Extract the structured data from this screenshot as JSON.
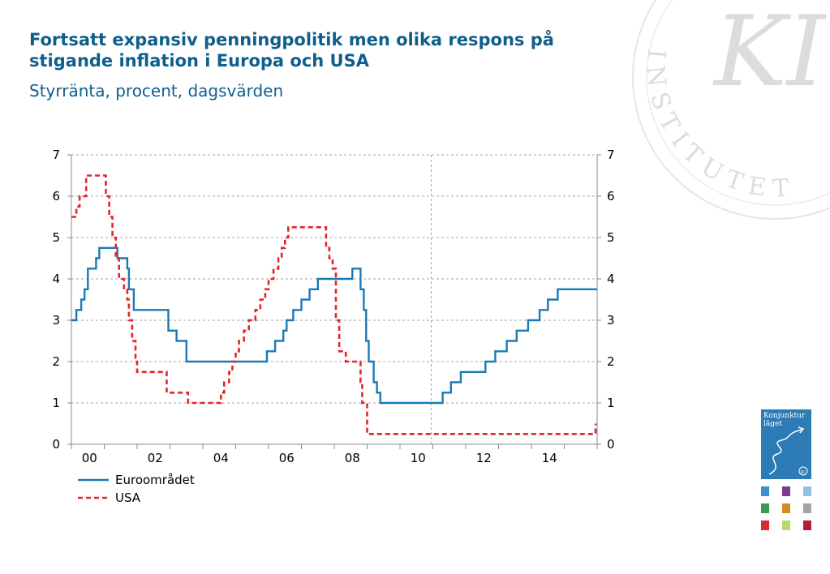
{
  "title": "Fortsatt expansiv penningpolitik men olika respons på stigande inflation i Europa och USA",
  "subtitle": "Styrränta, procent, dagsvärden",
  "watermark": {
    "letters": "KI",
    "ring_text": "INSTITUTET"
  },
  "report_badge": {
    "line1": "Konjunktur",
    "line2": "läget",
    "mark": "KI",
    "colors": [
      "#3a8fd0",
      "#7d3a8f",
      "#8fc3e6",
      "#3a9a52",
      "#d08c1e",
      "#9ea4a8",
      "#d8283a",
      "#b8d86a",
      "#b51e3a"
    ]
  },
  "chart_data": {
    "type": "line",
    "title": "",
    "xlabel": "",
    "ylabel": "",
    "ylim": [
      0,
      7
    ],
    "xlim": [
      1999.95,
      2015.95
    ],
    "yticks": [
      0,
      1,
      2,
      3,
      4,
      5,
      6,
      7
    ],
    "yticks_right": [
      0,
      1,
      2,
      3,
      4,
      5,
      6,
      7
    ],
    "xtick_labels": [
      "00",
      "02",
      "04",
      "06",
      "08",
      "10",
      "12",
      "14"
    ],
    "grid": "horizontal dashed",
    "vertical_marker": 2010.9,
    "legend_position": "bottom-left",
    "series": [
      {
        "name": "Euroområdet",
        "color": "#1a7ab5",
        "style": "solid",
        "points": [
          [
            1999.95,
            3.0
          ],
          [
            2000.1,
            3.25
          ],
          [
            2000.25,
            3.5
          ],
          [
            2000.35,
            3.75
          ],
          [
            2000.45,
            4.25
          ],
          [
            2000.7,
            4.5
          ],
          [
            2000.8,
            4.75
          ],
          [
            2001.35,
            4.5
          ],
          [
            2001.65,
            4.25
          ],
          [
            2001.7,
            3.75
          ],
          [
            2001.85,
            3.25
          ],
          [
            2002.9,
            2.75
          ],
          [
            2003.15,
            2.5
          ],
          [
            2003.45,
            2.0
          ],
          [
            2005.9,
            2.25
          ],
          [
            2006.15,
            2.5
          ],
          [
            2006.4,
            2.75
          ],
          [
            2006.5,
            3.0
          ],
          [
            2006.7,
            3.25
          ],
          [
            2006.95,
            3.5
          ],
          [
            2007.2,
            3.75
          ],
          [
            2007.45,
            4.0
          ],
          [
            2008.5,
            4.25
          ],
          [
            2008.75,
            3.75
          ],
          [
            2008.85,
            3.25
          ],
          [
            2008.92,
            2.5
          ],
          [
            2009.0,
            2.0
          ],
          [
            2009.15,
            1.5
          ],
          [
            2009.25,
            1.25
          ],
          [
            2009.35,
            1.0
          ],
          [
            2011.25,
            1.25
          ],
          [
            2011.5,
            1.5
          ],
          [
            2011.8,
            1.75
          ],
          [
            2012.55,
            2.0
          ],
          [
            2012.85,
            2.25
          ],
          [
            2013.2,
            2.5
          ],
          [
            2013.5,
            2.75
          ],
          [
            2013.85,
            3.0
          ],
          [
            2014.2,
            3.25
          ],
          [
            2014.45,
            3.5
          ],
          [
            2014.75,
            3.75
          ],
          [
            2015.95,
            3.75
          ]
        ]
      },
      {
        "name": "USA",
        "color": "#e32628",
        "style": "dashed",
        "points": [
          [
            1999.95,
            5.5
          ],
          [
            2000.1,
            5.75
          ],
          [
            2000.2,
            6.0
          ],
          [
            2000.4,
            6.5
          ],
          [
            2001.0,
            6.0
          ],
          [
            2001.1,
            5.5
          ],
          [
            2001.2,
            5.0
          ],
          [
            2001.3,
            4.5
          ],
          [
            2001.4,
            4.0
          ],
          [
            2001.55,
            3.75
          ],
          [
            2001.65,
            3.5
          ],
          [
            2001.7,
            3.0
          ],
          [
            2001.8,
            2.5
          ],
          [
            2001.9,
            2.0
          ],
          [
            2001.95,
            1.75
          ],
          [
            2002.85,
            1.25
          ],
          [
            2003.5,
            1.0
          ],
          [
            2004.5,
            1.25
          ],
          [
            2004.6,
            1.5
          ],
          [
            2004.75,
            1.75
          ],
          [
            2004.85,
            2.0
          ],
          [
            2004.95,
            2.25
          ],
          [
            2005.05,
            2.5
          ],
          [
            2005.2,
            2.75
          ],
          [
            2005.35,
            3.0
          ],
          [
            2005.55,
            3.25
          ],
          [
            2005.7,
            3.5
          ],
          [
            2005.85,
            3.75
          ],
          [
            2005.95,
            4.0
          ],
          [
            2006.1,
            4.25
          ],
          [
            2006.25,
            4.5
          ],
          [
            2006.35,
            4.75
          ],
          [
            2006.45,
            5.0
          ],
          [
            2006.55,
            5.25
          ],
          [
            2007.7,
            4.75
          ],
          [
            2007.8,
            4.5
          ],
          [
            2007.9,
            4.25
          ],
          [
            2008.0,
            3.0
          ],
          [
            2008.1,
            2.25
          ],
          [
            2008.3,
            2.0
          ],
          [
            2008.75,
            1.5
          ],
          [
            2008.8,
            1.0
          ],
          [
            2008.95,
            0.25
          ],
          [
            2015.9,
            0.5
          ]
        ]
      }
    ]
  }
}
